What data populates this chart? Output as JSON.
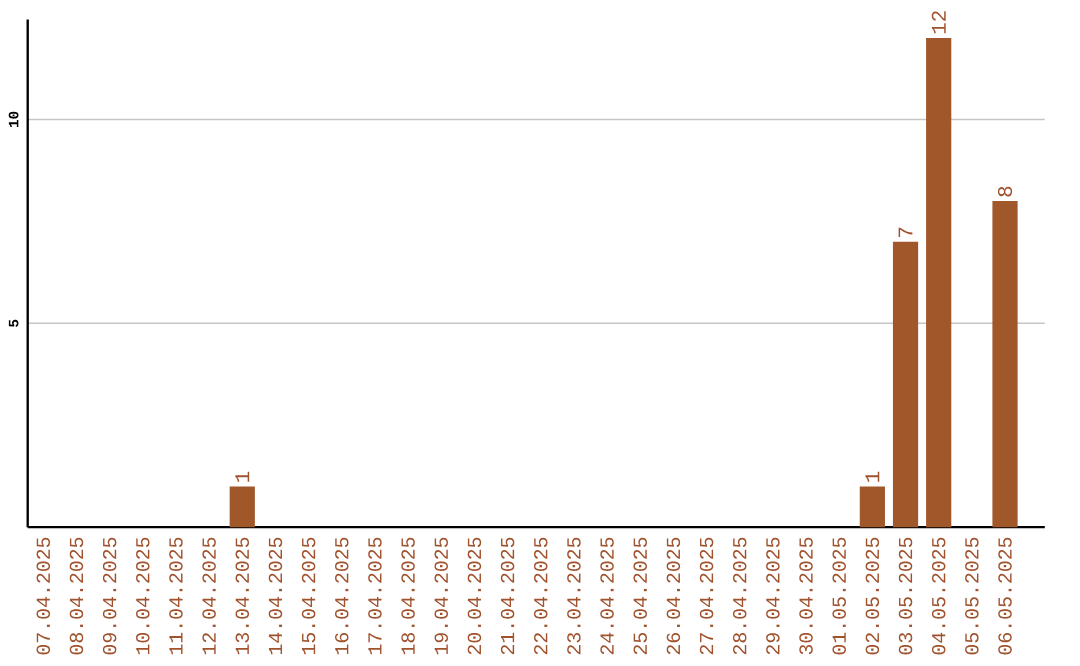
{
  "chart_data": {
    "type": "bar",
    "categories": [
      "07.04.2025",
      "08.04.2025",
      "09.04.2025",
      "10.04.2025",
      "11.04.2025",
      "12.04.2025",
      "13.04.2025",
      "14.04.2025",
      "15.04.2025",
      "16.04.2025",
      "17.04.2025",
      "18.04.2025",
      "19.04.2025",
      "20.04.2025",
      "21.04.2025",
      "22.04.2025",
      "23.04.2025",
      "24.04.2025",
      "25.04.2025",
      "26.04.2025",
      "27.04.2025",
      "28.04.2025",
      "29.04.2025",
      "30.04.2025",
      "01.05.2025",
      "02.05.2025",
      "03.05.2025",
      "04.05.2025",
      "05.05.2025",
      "06.05.2025"
    ],
    "values": [
      0,
      0,
      0,
      0,
      0,
      0,
      1,
      0,
      0,
      0,
      0,
      0,
      0,
      0,
      0,
      0,
      0,
      0,
      0,
      0,
      0,
      0,
      0,
      0,
      0,
      1,
      7,
      12,
      0,
      8
    ],
    "value_labels": [
      null,
      null,
      null,
      null,
      null,
      null,
      "1",
      null,
      null,
      null,
      null,
      null,
      null,
      null,
      null,
      null,
      null,
      null,
      null,
      null,
      null,
      null,
      null,
      null,
      null,
      "1",
      "7",
      "12",
      null,
      "8"
    ],
    "color": "#a0572a",
    "ylim": [
      0,
      12.45
    ],
    "yticks": [
      5,
      10
    ],
    "grid": "y"
  }
}
